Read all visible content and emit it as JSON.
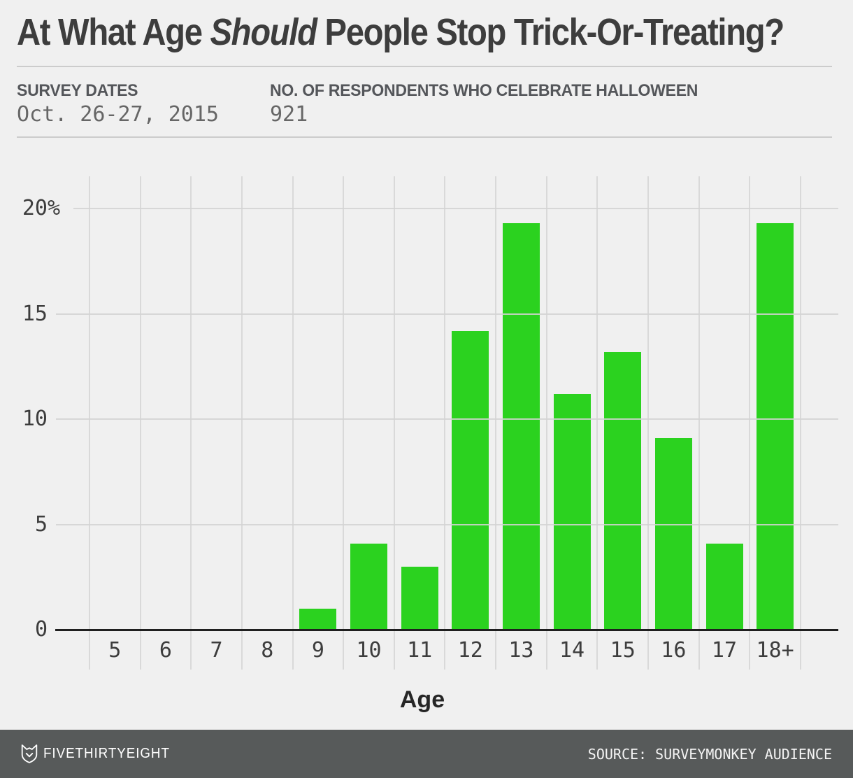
{
  "header": {
    "title_pre": "At What Age ",
    "title_italic": "Should",
    "title_post": " People Stop Trick-Or-Treating?",
    "meta": [
      {
        "label": "SURVEY DATES",
        "value": "Oct. 26-27, 2015"
      },
      {
        "label": "NO. OF RESPONDENTS WHO CELEBRATE HALLOWEEN",
        "value": "921"
      }
    ]
  },
  "chart_data": {
    "type": "bar",
    "categories": [
      "5",
      "6",
      "7",
      "8",
      "9",
      "10",
      "11",
      "12",
      "13",
      "14",
      "15",
      "16",
      "17",
      "18+"
    ],
    "values": [
      0,
      0,
      0,
      0,
      1.0,
      4.1,
      3.0,
      14.2,
      19.3,
      11.2,
      13.2,
      9.1,
      4.1,
      19.3
    ],
    "title": "At What Age Should People Stop Trick-Or-Treating?",
    "xlabel": "Age",
    "ylabel": "",
    "ylim": [
      0,
      21.5
    ],
    "ytick_values": [
      0,
      5,
      10,
      15,
      20
    ],
    "ytick_labels": [
      "0",
      "5",
      "10",
      "15",
      "20"
    ],
    "ytick_top_suffix": "%",
    "grid": "on",
    "bar_color": "#2bd21f",
    "units": "percent of respondents"
  },
  "footer": {
    "brand": "FIVETHIRTYEIGHT",
    "source": "SOURCE: SURVEYMONKEY AUDIENCE"
  },
  "colors": {
    "background": "#f0f0f0",
    "bar_green": "#2bd21f",
    "footer_bg": "#575a5a",
    "grid": "#d9d9d9",
    "axis": "#1f1f1f",
    "title_text": "#3d3d3d",
    "meta_label_text": "#54565a",
    "meta_value_text": "#666666",
    "tick_text": "#3d3d3d"
  }
}
